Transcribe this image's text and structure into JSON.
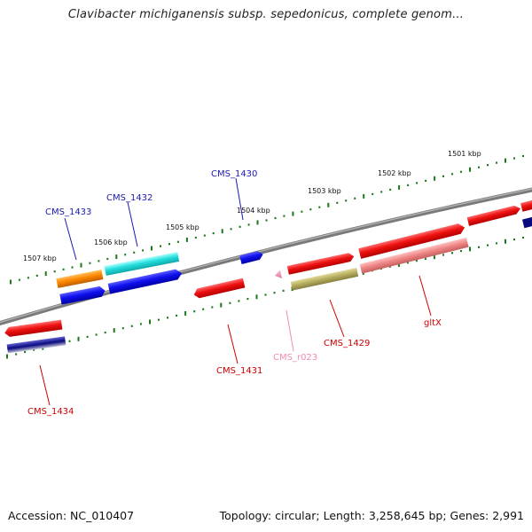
{
  "header": {
    "title": "Clavibacter michiganensis subsp. sepedonicus, complete genom..."
  },
  "footer": {
    "accession": "Accession: NC_010407",
    "summary": "Topology: circular; Length: 3,258,645 bp; Genes: 2,991"
  },
  "kbp_labels": [
    "1507 kbp",
    "1506 kbp",
    "1505 kbp",
    "1504 kbp",
    "1503 kbp",
    "1502 kbp",
    "1501 kbp"
  ],
  "genes": [
    {
      "label": "CMS_1433",
      "color": "#1a1ab0"
    },
    {
      "label": "CMS_1432",
      "color": "#1a1ab0"
    },
    {
      "label": "CMS_1430",
      "color": "#1a1ab0"
    },
    {
      "label": "CMS_1429",
      "color": "#cc0000"
    },
    {
      "label": "gltX",
      "color": "#cc0000"
    },
    {
      "label": "CMS_1431",
      "color": "#cc0000"
    },
    {
      "label": "CMS_r023",
      "color": "#f08cb4"
    },
    {
      "label": "CMS_1434",
      "color": "#cc0000"
    }
  ],
  "colors": {
    "backbone": "#7a7a7a",
    "tick": "#1a7a1a",
    "red": "#ee1111",
    "blue": "#1010ee",
    "orange": "#ff8800",
    "cyan": "#22dddd",
    "olive": "#b8b060",
    "salmon": "#f08888",
    "pink": "#f08cb4",
    "navy": "#0a0a80"
  }
}
